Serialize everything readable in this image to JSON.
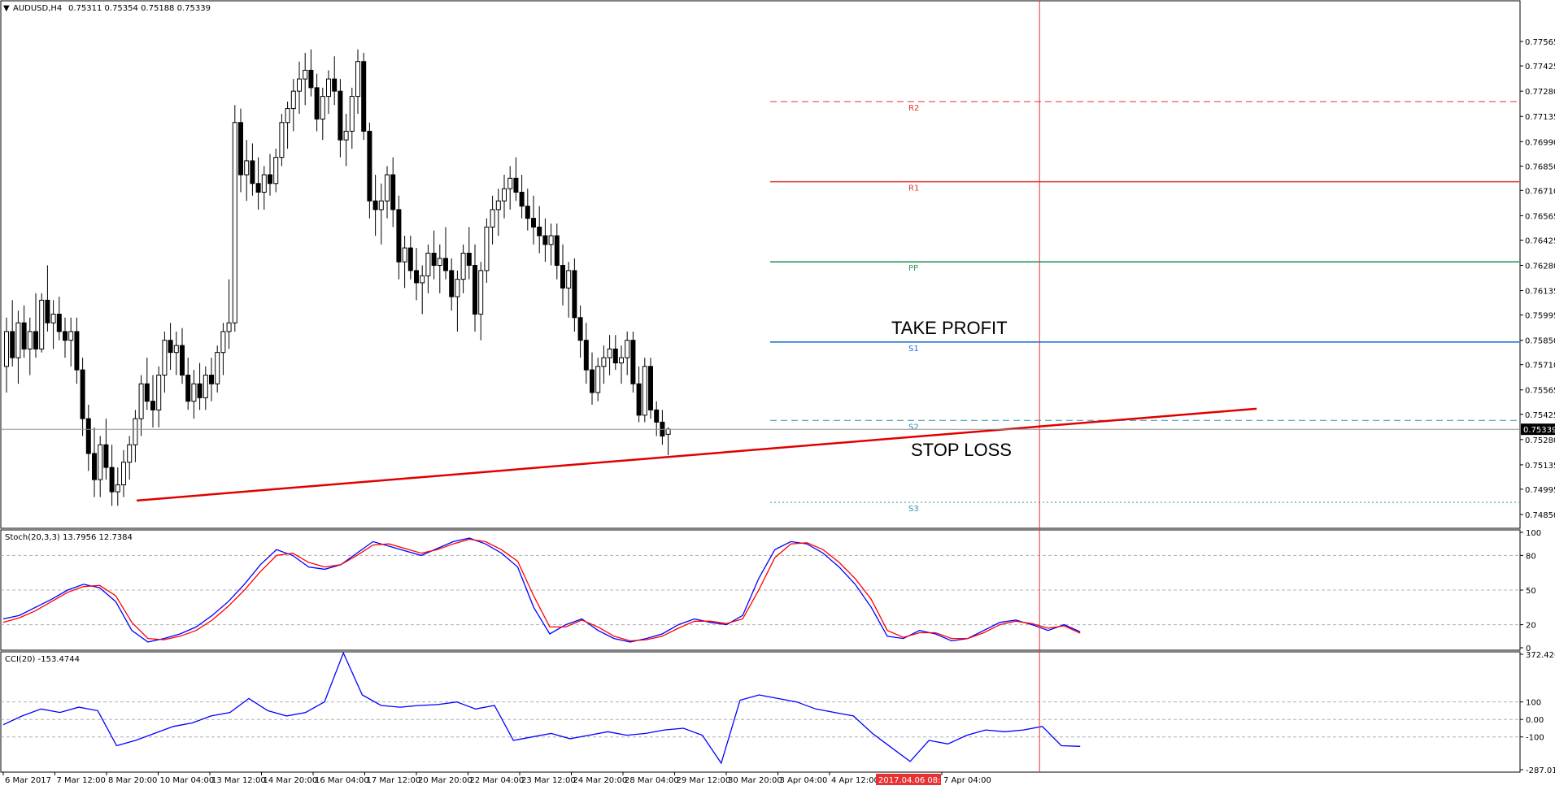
{
  "chart_data": [
    {
      "type": "candlestick",
      "symbol_label": "AUDUSD,H4",
      "ohlc_label": "0.75311 0.75354 0.75188 0.75339",
      "current_price": "0.75339",
      "ylim": [
        0.7478,
        0.7778
      ],
      "y_ticks": [
        "0.77565",
        "0.77425",
        "0.77280",
        "0.77135",
        "0.76990",
        "0.76850",
        "0.76710",
        "0.76565",
        "0.76425",
        "0.76280",
        "0.76135",
        "0.75995",
        "0.75850",
        "0.75710",
        "0.75565",
        "0.75425",
        "0.75280",
        "0.75135",
        "0.74995",
        "0.74850"
      ],
      "pivot_levels": [
        {
          "name": "R2",
          "value": 0.7722,
          "color": "#e03030",
          "style": "dashed"
        },
        {
          "name": "R1",
          "value": 0.7676,
          "color": "#e03030",
          "style": "solid"
        },
        {
          "name": "PP",
          "value": 0.763,
          "color": "#2e9b5a",
          "style": "solid"
        },
        {
          "name": "S1",
          "value": 0.7584,
          "color": "#1e6fd6",
          "style": "solid"
        },
        {
          "name": "S2",
          "value": 0.7539,
          "color": "#2a8fb0",
          "style": "dashed"
        },
        {
          "name": "S3",
          "value": 0.7492,
          "color": "#2a8fb0",
          "style": "dotted"
        }
      ],
      "annotations": [
        {
          "text": "TAKE PROFIT",
          "value": 0.7592
        },
        {
          "text": "STOP LOSS",
          "value": 0.7525
        }
      ],
      "trendline": {
        "start": {
          "x": 25,
          "y": 0.7493
        },
        "end": {
          "x": 201,
          "y": 0.7542
        },
        "color": "#e00000"
      },
      "crosshair": {
        "x": 176,
        "label": "2017.04.06 08:00",
        "color": "#e63232"
      },
      "candles": [
        [
          0.757,
          0.7598,
          0.7555,
          0.759
        ],
        [
          0.759,
          0.7608,
          0.757,
          0.7575
        ],
        [
          0.7575,
          0.7602,
          0.756,
          0.7595
        ],
        [
          0.7595,
          0.7605,
          0.7575,
          0.758
        ],
        [
          0.758,
          0.7598,
          0.7565,
          0.759
        ],
        [
          0.759,
          0.7612,
          0.7575,
          0.758
        ],
        [
          0.758,
          0.7612,
          0.7578,
          0.7608
        ],
        [
          0.7608,
          0.7628,
          0.759,
          0.7595
        ],
        [
          0.7595,
          0.7608,
          0.758,
          0.76
        ],
        [
          0.76,
          0.761,
          0.7585,
          0.759
        ],
        [
          0.759,
          0.7598,
          0.7575,
          0.7585
        ],
        [
          0.7585,
          0.7598,
          0.757,
          0.759
        ],
        [
          0.759,
          0.7598,
          0.756,
          0.7568
        ],
        [
          0.7568,
          0.7575,
          0.753,
          0.754
        ],
        [
          0.754,
          0.7548,
          0.751,
          0.752
        ],
        [
          0.752,
          0.7535,
          0.7495,
          0.7505
        ],
        [
          0.7505,
          0.753,
          0.7495,
          0.7525
        ],
        [
          0.7525,
          0.754,
          0.7505,
          0.7512
        ],
        [
          0.7512,
          0.7525,
          0.749,
          0.7498
        ],
        [
          0.7498,
          0.7512,
          0.749,
          0.7502
        ],
        [
          0.7502,
          0.7522,
          0.7495,
          0.7515
        ],
        [
          0.7515,
          0.753,
          0.7505,
          0.7525
        ],
        [
          0.7525,
          0.7545,
          0.7515,
          0.754
        ],
        [
          0.754,
          0.7565,
          0.753,
          0.756
        ],
        [
          0.756,
          0.7575,
          0.7545,
          0.755
        ],
        [
          0.755,
          0.7565,
          0.7535,
          0.7545
        ],
        [
          0.7545,
          0.757,
          0.7535,
          0.7565
        ],
        [
          0.7565,
          0.759,
          0.7555,
          0.7585
        ],
        [
          0.7585,
          0.7595,
          0.7568,
          0.7578
        ],
        [
          0.7578,
          0.759,
          0.7565,
          0.7582
        ],
        [
          0.7582,
          0.7592,
          0.756,
          0.7565
        ],
        [
          0.7565,
          0.7575,
          0.7545,
          0.755
        ],
        [
          0.755,
          0.7568,
          0.754,
          0.756
        ],
        [
          0.756,
          0.7572,
          0.7545,
          0.7552
        ],
        [
          0.7552,
          0.757,
          0.7545,
          0.7565
        ],
        [
          0.7565,
          0.7575,
          0.755,
          0.756
        ],
        [
          0.756,
          0.7582,
          0.7555,
          0.7578
        ],
        [
          0.7578,
          0.7595,
          0.7565,
          0.759
        ],
        [
          0.759,
          0.762,
          0.758,
          0.7595
        ],
        [
          0.7595,
          0.772,
          0.759,
          0.771
        ],
        [
          0.771,
          0.7718,
          0.767,
          0.768
        ],
        [
          0.768,
          0.77,
          0.7665,
          0.7688
        ],
        [
          0.7688,
          0.7698,
          0.7668,
          0.7675
        ],
        [
          0.7675,
          0.769,
          0.766,
          0.767
        ],
        [
          0.767,
          0.7685,
          0.766,
          0.768
        ],
        [
          0.768,
          0.7692,
          0.7668,
          0.7675
        ],
        [
          0.7675,
          0.7695,
          0.767,
          0.769
        ],
        [
          0.769,
          0.7715,
          0.7685,
          0.771
        ],
        [
          0.771,
          0.7722,
          0.7695,
          0.7718
        ],
        [
          0.7718,
          0.7735,
          0.7705,
          0.7728
        ],
        [
          0.7728,
          0.7745,
          0.7715,
          0.7735
        ],
        [
          0.7735,
          0.775,
          0.772,
          0.774
        ],
        [
          0.774,
          0.7752,
          0.7725,
          0.773
        ],
        [
          0.773,
          0.7738,
          0.7705,
          0.7712
        ],
        [
          0.7712,
          0.773,
          0.77,
          0.7725
        ],
        [
          0.7725,
          0.774,
          0.7715,
          0.7735
        ],
        [
          0.7735,
          0.7748,
          0.772,
          0.7728
        ],
        [
          0.7728,
          0.7735,
          0.769,
          0.77
        ],
        [
          0.77,
          0.7715,
          0.7685,
          0.7705
        ],
        [
          0.7705,
          0.773,
          0.7695,
          0.7725
        ],
        [
          0.7725,
          0.7752,
          0.7715,
          0.7745
        ],
        [
          0.7745,
          0.775,
          0.77,
          0.7705
        ],
        [
          0.7705,
          0.771,
          0.7655,
          0.7665
        ],
        [
          0.7665,
          0.768,
          0.7645,
          0.766
        ],
        [
          0.766,
          0.7675,
          0.764,
          0.7665
        ],
        [
          0.7665,
          0.7685,
          0.7655,
          0.768
        ],
        [
          0.768,
          0.769,
          0.765,
          0.766
        ],
        [
          0.766,
          0.7668,
          0.762,
          0.763
        ],
        [
          0.763,
          0.7645,
          0.7615,
          0.7638
        ],
        [
          0.7638,
          0.7645,
          0.762,
          0.7625
        ],
        [
          0.7625,
          0.7638,
          0.7608,
          0.7618
        ],
        [
          0.7618,
          0.7628,
          0.76,
          0.7622
        ],
        [
          0.7622,
          0.764,
          0.7612,
          0.7635
        ],
        [
          0.7635,
          0.7648,
          0.762,
          0.7628
        ],
        [
          0.7628,
          0.764,
          0.7612,
          0.7632
        ],
        [
          0.7632,
          0.765,
          0.762,
          0.7625
        ],
        [
          0.7625,
          0.7632,
          0.7602,
          0.761
        ],
        [
          0.761,
          0.7625,
          0.759,
          0.762
        ],
        [
          0.762,
          0.764,
          0.7612,
          0.7635
        ],
        [
          0.7635,
          0.765,
          0.762,
          0.7628
        ],
        [
          0.7628,
          0.764,
          0.759,
          0.76
        ],
        [
          0.76,
          0.763,
          0.7585,
          0.7625
        ],
        [
          0.7625,
          0.7655,
          0.7618,
          0.765
        ],
        [
          0.765,
          0.7668,
          0.764,
          0.766
        ],
        [
          0.766,
          0.7672,
          0.7645,
          0.7665
        ],
        [
          0.7665,
          0.768,
          0.7655,
          0.7672
        ],
        [
          0.7672,
          0.7685,
          0.766,
          0.7678
        ],
        [
          0.7678,
          0.769,
          0.7665,
          0.767
        ],
        [
          0.767,
          0.768,
          0.7655,
          0.7662
        ],
        [
          0.7662,
          0.7672,
          0.7648,
          0.7655
        ],
        [
          0.7655,
          0.7668,
          0.764,
          0.765
        ],
        [
          0.765,
          0.7662,
          0.7635,
          0.7645
        ],
        [
          0.7645,
          0.7655,
          0.763,
          0.764
        ],
        [
          0.764,
          0.7652,
          0.7628,
          0.7645
        ],
        [
          0.7645,
          0.7652,
          0.762,
          0.7628
        ],
        [
          0.7628,
          0.764,
          0.7605,
          0.7615
        ],
        [
          0.7615,
          0.763,
          0.7598,
          0.7625
        ],
        [
          0.7625,
          0.7632,
          0.759,
          0.7598
        ],
        [
          0.7598,
          0.7605,
          0.7575,
          0.7585
        ],
        [
          0.7585,
          0.7595,
          0.756,
          0.7568
        ],
        [
          0.7568,
          0.7578,
          0.7548,
          0.7555
        ],
        [
          0.7555,
          0.7575,
          0.755,
          0.757
        ],
        [
          0.757,
          0.7582,
          0.756,
          0.7575
        ],
        [
          0.7575,
          0.7588,
          0.7565,
          0.758
        ],
        [
          0.758,
          0.7588,
          0.7568,
          0.7572
        ],
        [
          0.7572,
          0.7582,
          0.756,
          0.7575
        ],
        [
          0.7575,
          0.759,
          0.7565,
          0.7585
        ],
        [
          0.7585,
          0.759,
          0.7555,
          0.756
        ],
        [
          0.756,
          0.757,
          0.7538,
          0.7542
        ],
        [
          0.7542,
          0.7575,
          0.7538,
          0.757
        ],
        [
          0.757,
          0.7575,
          0.754,
          0.7545
        ],
        [
          0.7545,
          0.755,
          0.753,
          0.7538
        ],
        [
          0.7538,
          0.7545,
          0.7525,
          0.753
        ],
        [
          0.7531,
          0.7535,
          0.7519,
          0.7534
        ]
      ]
    },
    {
      "type": "line",
      "label": "Stoch(20,3,3) 13.7956 12.7384",
      "ylim": [
        0,
        100
      ],
      "y_ticks": [
        "100",
        "80",
        "50",
        "20",
        "0"
      ],
      "series": [
        {
          "color": "#0000ff",
          "values": [
            25,
            28,
            35,
            42,
            50,
            55,
            52,
            40,
            15,
            5,
            8,
            12,
            18,
            28,
            40,
            55,
            72,
            85,
            80,
            70,
            68,
            72,
            82,
            92,
            88,
            84,
            80,
            86,
            92,
            95,
            90,
            82,
            70,
            35,
            12,
            20,
            25,
            15,
            8,
            5,
            8,
            12,
            20,
            25,
            22,
            20,
            28,
            60,
            85,
            92,
            90,
            82,
            70,
            55,
            35,
            10,
            8,
            15,
            12,
            6,
            8,
            15,
            22,
            24,
            20,
            15,
            20,
            13.8
          ]
        },
        {
          "color": "#ff0000",
          "values": [
            22,
            26,
            32,
            40,
            48,
            53,
            54,
            45,
            22,
            8,
            7,
            10,
            15,
            24,
            36,
            50,
            66,
            80,
            82,
            74,
            70,
            72,
            80,
            89,
            90,
            86,
            82,
            85,
            90,
            94,
            92,
            85,
            75,
            45,
            18,
            18,
            24,
            18,
            10,
            6,
            7,
            10,
            17,
            23,
            23,
            21,
            25,
            50,
            78,
            90,
            91,
            85,
            74,
            60,
            42,
            15,
            9,
            13,
            13,
            8,
            8,
            13,
            20,
            23,
            21,
            17,
            19,
            12.7
          ]
        }
      ]
    },
    {
      "type": "line",
      "label": "CCI(20) -153.4744",
      "ylim": [
        -287.0114,
        372.4268
      ],
      "y_ticks": [
        "372.4268",
        "100",
        "0.00",
        "-100",
        "-287.0114"
      ],
      "series": [
        {
          "color": "#0000ff",
          "values": [
            -30,
            20,
            60,
            40,
            70,
            50,
            -150,
            -120,
            -80,
            -40,
            -20,
            20,
            40,
            120,
            50,
            20,
            40,
            100,
            380,
            140,
            80,
            70,
            80,
            85,
            100,
            60,
            80,
            -120,
            -100,
            -80,
            -110,
            -90,
            -70,
            -90,
            -80,
            -60,
            -50,
            -90,
            -250,
            110,
            140,
            120,
            100,
            60,
            40,
            20,
            -80,
            -160,
            -240,
            -120,
            -140,
            -90,
            -60,
            -70,
            -60,
            -40,
            -150,
            -153.5
          ]
        }
      ]
    }
  ],
  "x_labels": [
    "6 Mar 2017",
    "7 Mar 12:00",
    "8 Mar 20:00",
    "10 Mar 04:00",
    "13 Mar 12:00",
    "14 Mar 20:00",
    "16 Mar 04:00",
    "17 Mar 12:00",
    "20 Mar 20:00",
    "22 Mar 04:00",
    "23 Mar 12:00",
    "24 Mar 20:00",
    "28 Mar 04:00",
    "29 Mar 12:00",
    "30 Mar 20:00",
    "3 Apr 04:00",
    "4 Apr 12:00",
    "2017.04.06 08:00",
    "7 Apr 04:00"
  ],
  "colors": {
    "bullish_fill": "#ffffff",
    "bearish_fill": "#000000",
    "grid": "#c0c0c0",
    "axis": "#000000"
  }
}
